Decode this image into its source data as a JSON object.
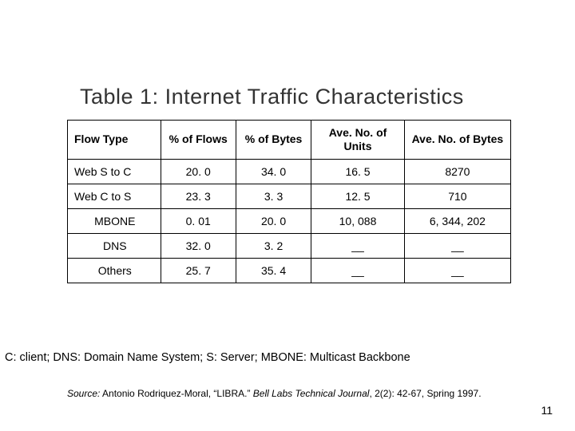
{
  "title": "Table 1: Internet Traffic Characteristics",
  "table": {
    "columns": [
      "Flow Type",
      "% of Flows",
      "% of Bytes",
      "Ave. No. of Units",
      "Ave. No. of Bytes"
    ],
    "rows": [
      {
        "flow_type": "Web S to C",
        "pct_flows": "20. 0",
        "pct_bytes": "34. 0",
        "avg_units": "16. 5",
        "avg_bytes": "8270",
        "first_align": "left"
      },
      {
        "flow_type": "Web C to S",
        "pct_flows": "23. 3",
        "pct_bytes": "3. 3",
        "avg_units": "12. 5",
        "avg_bytes": "710",
        "first_align": "left"
      },
      {
        "flow_type": "MBONE",
        "pct_flows": "0. 01",
        "pct_bytes": "20. 0",
        "avg_units": "10, 088",
        "avg_bytes": "6, 344, 202",
        "first_align": "center"
      },
      {
        "flow_type": "DNS",
        "pct_flows": "32. 0",
        "pct_bytes": "3. 2",
        "avg_units": "__",
        "avg_bytes": "__",
        "first_align": "center"
      },
      {
        "flow_type": "Others",
        "pct_flows": "25. 7",
        "pct_bytes": "35. 4",
        "avg_units": "__",
        "avg_bytes": "__",
        "first_align": "center"
      }
    ],
    "border_color": "#000000",
    "header_fontsize": 14,
    "cell_fontsize": 14
  },
  "legend": "C: client; DNS: Domain Name System; S: Server; MBONE: Multicast Backbone",
  "source": {
    "label": "Source:",
    "text_before": " Antonio Rodriquez-Moral, “LIBRA.” ",
    "journal": "Bell Labs Technical Journal",
    "text_after": ", 2(2): 42-67, Spring 1997."
  },
  "page_number": "11",
  "colors": {
    "title": "#333333",
    "text": "#000000",
    "background": "#ffffff"
  }
}
